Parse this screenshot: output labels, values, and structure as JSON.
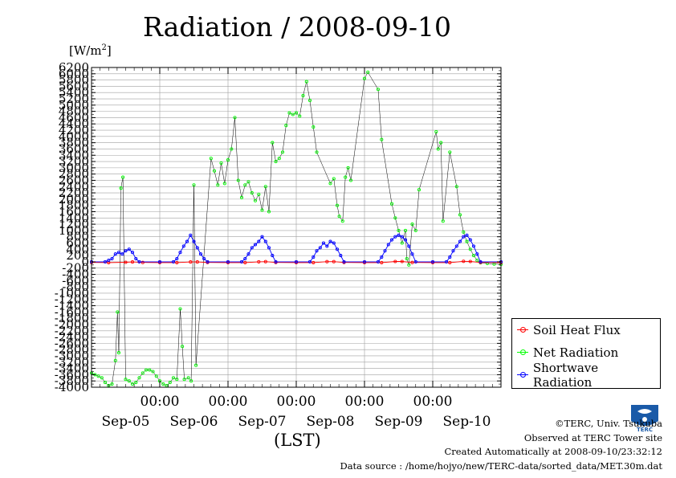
{
  "chart_data": {
    "type": "line",
    "title": "Radiation / 2008-09-10",
    "ylabel_unit": "[W/m",
    "ylabel_sup": "2",
    "ylabel_close": "]",
    "xlabel": "(LST)",
    "ylim": [
      -4000,
      6200
    ],
    "yticks": [
      6200,
      6000,
      5800,
      5600,
      5400,
      5200,
      5000,
      4800,
      4600,
      4400,
      4200,
      4000,
      3800,
      3600,
      3400,
      3200,
      3000,
      2800,
      2600,
      2400,
      2200,
      2000,
      1800,
      1600,
      1400,
      1200,
      1000,
      800,
      600,
      400,
      200,
      0,
      -200,
      -400,
      -600,
      -800,
      -1000,
      -1200,
      -1400,
      -1600,
      -1800,
      -2000,
      -2200,
      -2400,
      -2600,
      -2800,
      -3000,
      -3200,
      -3400,
      -3600,
      -3800,
      -4000
    ],
    "xlim_days": [
      0,
      6
    ],
    "x_hour_ticks": [
      {
        "day": 1,
        "label": "00:00"
      },
      {
        "day": 2,
        "label": "00:00"
      },
      {
        "day": 3,
        "label": "00:00"
      },
      {
        "day": 4,
        "label": "00:00"
      },
      {
        "day": 5,
        "label": "00:00"
      }
    ],
    "x_date_labels": [
      {
        "day": 0.5,
        "label": "Sep-05"
      },
      {
        "day": 1.5,
        "label": "Sep-06"
      },
      {
        "day": 2.5,
        "label": "Sep-07"
      },
      {
        "day": 3.5,
        "label": "Sep-08"
      },
      {
        "day": 4.5,
        "label": "Sep-09"
      },
      {
        "day": 5.5,
        "label": "Sep-10"
      }
    ],
    "grid": true,
    "legend_position": "bottom-right",
    "series": [
      {
        "name": "Soil Heat Flux",
        "color": "#ff0000",
        "points": [
          [
            0,
            -20
          ],
          [
            0.25,
            -25
          ],
          [
            0.5,
            -15
          ],
          [
            0.6,
            -5
          ],
          [
            0.75,
            -20
          ],
          [
            1.0,
            -25
          ],
          [
            1.25,
            -25
          ],
          [
            1.45,
            -5
          ],
          [
            1.55,
            -5
          ],
          [
            1.7,
            -20
          ],
          [
            2.0,
            -25
          ],
          [
            2.25,
            -25
          ],
          [
            2.45,
            0
          ],
          [
            2.55,
            5
          ],
          [
            2.7,
            -20
          ],
          [
            3.0,
            -25
          ],
          [
            3.25,
            -25
          ],
          [
            3.45,
            5
          ],
          [
            3.55,
            5
          ],
          [
            3.7,
            -20
          ],
          [
            4.0,
            -25
          ],
          [
            4.25,
            -25
          ],
          [
            4.45,
            10
          ],
          [
            4.55,
            10
          ],
          [
            4.7,
            -20
          ],
          [
            5.0,
            -25
          ],
          [
            5.25,
            -25
          ],
          [
            5.45,
            15
          ],
          [
            5.55,
            10
          ],
          [
            5.7,
            -20
          ],
          [
            6.0,
            -25
          ]
        ]
      },
      {
        "name": "Net Radiation",
        "color": "#00ff00",
        "points": [
          [
            0,
            -3550
          ],
          [
            0.05,
            -3600
          ],
          [
            0.1,
            -3650
          ],
          [
            0.15,
            -3700
          ],
          [
            0.2,
            -3850
          ],
          [
            0.25,
            -3950
          ],
          [
            0.3,
            -3900
          ],
          [
            0.35,
            -3150
          ],
          [
            0.38,
            -1600
          ],
          [
            0.4,
            -2900
          ],
          [
            0.43,
            2350
          ],
          [
            0.46,
            2700
          ],
          [
            0.5,
            -3750
          ],
          [
            0.55,
            -3800
          ],
          [
            0.6,
            -3900
          ],
          [
            0.65,
            -3850
          ],
          [
            0.7,
            -3700
          ],
          [
            0.75,
            -3550
          ],
          [
            0.8,
            -3450
          ],
          [
            0.85,
            -3450
          ],
          [
            0.9,
            -3500
          ],
          [
            0.95,
            -3650
          ],
          [
            1.0,
            -3800
          ],
          [
            1.05,
            -3900
          ],
          [
            1.1,
            -3950
          ],
          [
            1.15,
            -3850
          ],
          [
            1.2,
            -3700
          ],
          [
            1.25,
            -3750
          ],
          [
            1.3,
            -1500
          ],
          [
            1.33,
            -2700
          ],
          [
            1.36,
            -3750
          ],
          [
            1.42,
            -3700
          ],
          [
            1.46,
            -3800
          ],
          [
            1.5,
            2450
          ],
          [
            1.53,
            -3300
          ],
          [
            1.75,
            3300
          ],
          [
            1.8,
            2900
          ],
          [
            1.85,
            2450
          ],
          [
            1.9,
            3150
          ],
          [
            1.95,
            2500
          ],
          [
            2.0,
            3250
          ],
          [
            2.05,
            3600
          ],
          [
            2.1,
            4600
          ],
          [
            2.15,
            2600
          ],
          [
            2.2,
            2050
          ],
          [
            2.25,
            2450
          ],
          [
            2.3,
            2550
          ],
          [
            2.35,
            2200
          ],
          [
            2.4,
            1950
          ],
          [
            2.45,
            2150
          ],
          [
            2.5,
            1650
          ],
          [
            2.55,
            2400
          ],
          [
            2.6,
            1600
          ],
          [
            2.65,
            3800
          ],
          [
            2.7,
            3200
          ],
          [
            2.75,
            3300
          ],
          [
            2.8,
            3500
          ],
          [
            2.85,
            4350
          ],
          [
            2.9,
            4750
          ],
          [
            2.95,
            4700
          ],
          [
            3.0,
            4750
          ],
          [
            3.05,
            4650
          ],
          [
            3.1,
            5300
          ],
          [
            3.15,
            5750
          ],
          [
            3.2,
            5150
          ],
          [
            3.25,
            4300
          ],
          [
            3.3,
            3500
          ],
          [
            3.5,
            2500
          ],
          [
            3.55,
            2650
          ],
          [
            3.6,
            1800
          ],
          [
            3.63,
            1450
          ],
          [
            3.68,
            1300
          ],
          [
            3.72,
            2700
          ],
          [
            3.76,
            3000
          ],
          [
            3.8,
            2600
          ],
          [
            4.0,
            5850
          ],
          [
            4.05,
            6050
          ],
          [
            4.2,
            5500
          ],
          [
            4.25,
            3900
          ],
          [
            4.4,
            1850
          ],
          [
            4.45,
            1400
          ],
          [
            4.5,
            1000
          ],
          [
            4.55,
            600
          ],
          [
            4.6,
            1000
          ],
          [
            4.62,
            100
          ],
          [
            4.65,
            -100
          ],
          [
            4.7,
            1200
          ],
          [
            4.75,
            1000
          ],
          [
            4.8,
            2300
          ],
          [
            5.05,
            4150
          ],
          [
            5.08,
            3600
          ],
          [
            5.12,
            3800
          ],
          [
            5.15,
            1300
          ],
          [
            5.25,
            3500
          ],
          [
            5.35,
            2400
          ],
          [
            5.4,
            1500
          ],
          [
            5.45,
            950
          ],
          [
            5.5,
            650
          ],
          [
            5.55,
            400
          ],
          [
            5.6,
            200
          ],
          [
            5.65,
            50
          ],
          [
            5.7,
            -30
          ],
          [
            5.8,
            -50
          ],
          [
            5.9,
            -70
          ],
          [
            6.0,
            -80
          ]
        ]
      },
      {
        "name": "Shortwave Radiation",
        "color": "#0000ff",
        "points": [
          [
            0,
            0
          ],
          [
            0.2,
            0
          ],
          [
            0.25,
            50
          ],
          [
            0.3,
            100
          ],
          [
            0.35,
            250
          ],
          [
            0.4,
            300
          ],
          [
            0.45,
            250
          ],
          [
            0.5,
            350
          ],
          [
            0.55,
            400
          ],
          [
            0.6,
            300
          ],
          [
            0.65,
            100
          ],
          [
            0.7,
            0
          ],
          [
            1.0,
            0
          ],
          [
            1.2,
            0
          ],
          [
            1.25,
            100
          ],
          [
            1.3,
            300
          ],
          [
            1.35,
            500
          ],
          [
            1.4,
            650
          ],
          [
            1.45,
            850
          ],
          [
            1.5,
            650
          ],
          [
            1.55,
            450
          ],
          [
            1.6,
            250
          ],
          [
            1.65,
            100
          ],
          [
            1.7,
            0
          ],
          [
            2.0,
            0
          ],
          [
            2.2,
            0
          ],
          [
            2.25,
            100
          ],
          [
            2.3,
            250
          ],
          [
            2.35,
            450
          ],
          [
            2.4,
            550
          ],
          [
            2.45,
            650
          ],
          [
            2.5,
            800
          ],
          [
            2.55,
            650
          ],
          [
            2.6,
            450
          ],
          [
            2.65,
            200
          ],
          [
            2.7,
            0
          ],
          [
            3.0,
            0
          ],
          [
            3.2,
            0
          ],
          [
            3.25,
            150
          ],
          [
            3.3,
            350
          ],
          [
            3.35,
            450
          ],
          [
            3.4,
            600
          ],
          [
            3.45,
            500
          ],
          [
            3.5,
            650
          ],
          [
            3.55,
            600
          ],
          [
            3.6,
            400
          ],
          [
            3.65,
            200
          ],
          [
            3.7,
            0
          ],
          [
            4.0,
            0
          ],
          [
            4.2,
            0
          ],
          [
            4.25,
            150
          ],
          [
            4.3,
            350
          ],
          [
            4.35,
            550
          ],
          [
            4.4,
            700
          ],
          [
            4.45,
            800
          ],
          [
            4.5,
            850
          ],
          [
            4.55,
            800
          ],
          [
            4.6,
            700
          ],
          [
            4.65,
            500
          ],
          [
            4.7,
            250
          ],
          [
            4.75,
            0
          ],
          [
            5.0,
            0
          ],
          [
            5.2,
            0
          ],
          [
            5.25,
            150
          ],
          [
            5.3,
            350
          ],
          [
            5.35,
            500
          ],
          [
            5.4,
            650
          ],
          [
            5.45,
            800
          ],
          [
            5.5,
            850
          ],
          [
            5.55,
            700
          ],
          [
            5.6,
            500
          ],
          [
            5.65,
            250
          ],
          [
            5.7,
            0
          ],
          [
            6.0,
            0
          ]
        ]
      }
    ]
  },
  "credits": {
    "line1": "©TERC, Univ. Tsukuba",
    "line2": "Observed at TERC Tower site",
    "line3": "Created Automatically at 2008-09-10/23:32:12",
    "line4": "Data source : /home/hojyo/new/TERC-data/sorted_data/MET.30m.dat"
  },
  "logo": {
    "icon": "terc-logo-icon",
    "text": "TERC",
    "color": "#1a5aa8"
  }
}
